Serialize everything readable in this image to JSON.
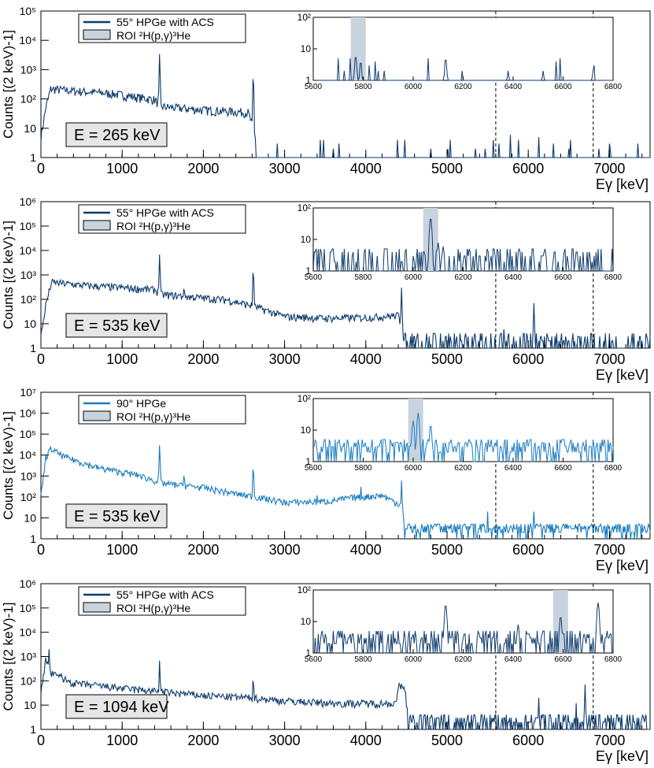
{
  "chart_data": [
    {
      "type": "line",
      "detector": "55° HPGe with ACS",
      "beam_energy_label": "265 keV",
      "ylabel": "Counts [(2 keV)-1]",
      "xlabel": "Eγ [keV]",
      "xlim": [
        0,
        7500
      ],
      "ylog": true,
      "ylim": [
        1,
        100000
      ],
      "x_ticks": [
        0,
        1000,
        2000,
        3000,
        4000,
        5000,
        6000,
        7000
      ],
      "y_ticks": [
        "1",
        "10",
        "10²",
        "10³",
        "10⁴",
        "10⁵"
      ],
      "legend": [
        "55° HPGe with ACS",
        "ROI ²H(p,γ)³He"
      ],
      "series_color": "#0d3a6b",
      "continuum": [
        [
          0,
          5
        ],
        [
          60,
          50
        ],
        [
          120,
          220
        ],
        [
          400,
          190
        ],
        [
          900,
          150
        ],
        [
          1400,
          95
        ],
        [
          1480,
          55
        ],
        [
          2000,
          42
        ],
        [
          2550,
          35
        ],
        [
          2620,
          9
        ],
        [
          2700,
          1
        ],
        [
          7500,
          1
        ]
      ],
      "peaks": [
        [
          1461,
          3500
        ],
        [
          2614,
          700
        ],
        [
          1764,
          40
        ],
        [
          1120,
          20
        ],
        [
          5780,
          6
        ],
        [
          6130,
          5
        ],
        [
          7000,
          3
        ],
        [
          4800,
          2
        ],
        [
          5350,
          2
        ],
        [
          3600,
          2
        ],
        [
          6500,
          2
        ]
      ],
      "noise_floor": 1,
      "noise_from": 2650,
      "noise_prob": 0.04,
      "dashed_lines_x": [
        5600,
        6800
      ],
      "inset": {
        "xlim": [
          5600,
          6800
        ],
        "ylim": [
          1,
          100
        ],
        "x_ticks": [
          5600,
          5800,
          6000,
          6200,
          6400,
          6600,
          6800
        ],
        "y_ticks": [
          "1",
          "10",
          "10²"
        ],
        "roi": [
          5750,
          5810
        ],
        "peaks": [
          [
            5770,
            6
          ],
          [
            5790,
            4
          ],
          [
            6130,
            5
          ],
          [
            6380,
            2
          ],
          [
            6520,
            2
          ],
          [
            6720,
            2
          ]
        ],
        "noise_prob": 0.03
      }
    },
    {
      "type": "line",
      "detector": "55° HPGe with ACS",
      "beam_energy_label": "535 keV",
      "ylabel": "Counts [(2 keV)-1]",
      "xlabel": "Eγ [keV]",
      "xlim": [
        0,
        7500
      ],
      "ylog": true,
      "ylim": [
        1,
        1000000
      ],
      "x_ticks": [
        0,
        1000,
        2000,
        3000,
        4000,
        5000,
        6000,
        7000
      ],
      "y_ticks": [
        "1",
        "10",
        "10²",
        "10³",
        "10⁴",
        "10⁵",
        "10⁶"
      ],
      "legend": [
        "55° HPGe with ACS",
        "ROI ²H(p,γ)³He"
      ],
      "series_color": "#0d3a6b",
      "continuum": [
        [
          0,
          3
        ],
        [
          60,
          60
        ],
        [
          130,
          500
        ],
        [
          500,
          380
        ],
        [
          1400,
          250
        ],
        [
          1480,
          160
        ],
        [
          2300,
          95
        ],
        [
          2600,
          55
        ],
        [
          3000,
          20
        ],
        [
          3500,
          17
        ],
        [
          4000,
          18
        ],
        [
          4400,
          22
        ],
        [
          4480,
          2
        ],
        [
          7500,
          2
        ]
      ],
      "peaks": [
        [
          1461,
          7000
        ],
        [
          2614,
          1800
        ],
        [
          1764,
          400
        ],
        [
          2375,
          60
        ],
        [
          2370,
          60
        ],
        [
          4440,
          300
        ],
        [
          3900,
          20
        ],
        [
          6070,
          70
        ],
        [
          3200,
          12
        ],
        [
          500,
          120
        ],
        [
          5700,
          6
        ]
      ],
      "noise_floor": 1,
      "noise_from": 4480,
      "noise_prob": 0.55,
      "dashed_lines_x": [
        5600,
        6800
      ],
      "inset": {
        "xlim": [
          5600,
          6800
        ],
        "ylim": [
          1,
          100
        ],
        "x_ticks": [
          5600,
          5800,
          6000,
          6200,
          6400,
          6600,
          6800
        ],
        "y_ticks": [
          "1",
          "10",
          "10²"
        ],
        "roi": [
          6040,
          6100
        ],
        "peaks": [
          [
            6070,
            50
          ],
          [
            6120,
            6
          ],
          [
            6100,
            8
          ]
        ],
        "noise_prob": 0.55
      }
    },
    {
      "type": "line",
      "detector": "90° HPGe",
      "beam_energy_label": "535 keV",
      "ylabel": "Counts [(2 keV)-1]",
      "xlabel": "Eγ [keV]",
      "xlim": [
        0,
        7500
      ],
      "ylog": true,
      "ylim": [
        1,
        10000000
      ],
      "x_ticks": [
        0,
        1000,
        2000,
        3000,
        4000,
        5000,
        6000,
        7000
      ],
      "y_ticks": [
        "1",
        "10",
        "10²",
        "10³",
        "10⁴",
        "10⁵",
        "10⁶",
        "10⁷"
      ],
      "legend": [
        "90° HPGe",
        "ROI ²H(p,γ)³He"
      ],
      "series_color": "#1a7cc1",
      "continuum": [
        [
          0,
          100
        ],
        [
          60,
          8000
        ],
        [
          120,
          20000
        ],
        [
          300,
          8000
        ],
        [
          700,
          2500
        ],
        [
          1200,
          1100
        ],
        [
          1500,
          450
        ],
        [
          2000,
          280
        ],
        [
          2400,
          140
        ],
        [
          2600,
          110
        ],
        [
          3000,
          55
        ],
        [
          3500,
          60
        ],
        [
          3800,
          90
        ],
        [
          4200,
          120
        ],
        [
          4440,
          40
        ],
        [
          4470,
          8
        ],
        [
          5000,
          12
        ],
        [
          5700,
          9
        ],
        [
          6000,
          4
        ],
        [
          7500,
          4
        ]
      ],
      "peaks": [
        [
          1461,
          30000
        ],
        [
          2614,
          3000
        ],
        [
          3400,
          120
        ],
        [
          3940,
          300
        ],
        [
          4440,
          600
        ],
        [
          2375,
          200
        ],
        [
          6070,
          20
        ],
        [
          5500,
          20
        ],
        [
          1764,
          1500
        ],
        [
          600,
          3000
        ]
      ],
      "noise_floor": 2,
      "noise_from": 4470,
      "noise_prob": 0.9,
      "dashed_lines_x": [
        5600,
        6800
      ],
      "inset": {
        "xlim": [
          5600,
          6800
        ],
        "ylim": [
          1,
          100
        ],
        "x_ticks": [
          5600,
          5800,
          6000,
          6200,
          6400,
          6600,
          6800
        ],
        "y_ticks": [
          "1",
          "10",
          "10²"
        ],
        "roi": [
          5980,
          6040
        ],
        "peaks": [
          [
            6020,
            35
          ],
          [
            6000,
            20
          ],
          [
            6070,
            15
          ]
        ],
        "noise_prob": 0.95
      }
    },
    {
      "type": "line",
      "detector": "55° HPGe with ACS",
      "beam_energy_label": "1094 keV",
      "ylabel": "Counts [(2 keV)-1]",
      "xlabel": "Eγ [keV]",
      "xlim": [
        0,
        7500
      ],
      "ylog": true,
      "ylim": [
        1,
        1000000
      ],
      "x_ticks": [
        0,
        1000,
        2000,
        3000,
        4000,
        5000,
        6000,
        7000
      ],
      "y_ticks": [
        "1",
        "10",
        "10²",
        "10³",
        "10⁴",
        "10⁵",
        "10⁶"
      ],
      "legend": [
        "55° HPGe with ACS",
        "ROI ²H(p,γ)³He"
      ],
      "series_color": "#0d3a6b",
      "continuum": [
        [
          0,
          30
        ],
        [
          60,
          800
        ],
        [
          130,
          200
        ],
        [
          400,
          80
        ],
        [
          1000,
          50
        ],
        [
          1500,
          35
        ],
        [
          2000,
          25
        ],
        [
          2600,
          20
        ],
        [
          3000,
          15
        ],
        [
          3600,
          12
        ],
        [
          4000,
          12
        ],
        [
          4380,
          12
        ],
        [
          4400,
          60
        ],
        [
          4480,
          55
        ],
        [
          4520,
          3
        ],
        [
          7500,
          3
        ]
      ],
      "peaks": [
        [
          1461,
          700
        ],
        [
          2614,
          150
        ],
        [
          100,
          2000
        ],
        [
          250,
          200
        ],
        [
          6700,
          70
        ],
        [
          6130,
          20
        ],
        [
          6590,
          12
        ]
      ],
      "noise_floor": 1,
      "noise_from": 4520,
      "noise_prob": 0.75,
      "dashed_lines_x": [
        5600,
        6800
      ],
      "inset": {
        "xlim": [
          5600,
          6800
        ],
        "ylim": [
          1,
          100
        ],
        "x_ticks": [
          5600,
          5800,
          6000,
          6200,
          6400,
          6600,
          6800
        ],
        "y_ticks": [
          "1",
          "10",
          "10²"
        ],
        "roi": [
          6560,
          6620
        ],
        "peaks": [
          [
            6130,
            35
          ],
          [
            6740,
            40
          ],
          [
            6590,
            15
          ],
          [
            6420,
            8
          ]
        ],
        "noise_prob": 0.8
      }
    }
  ]
}
